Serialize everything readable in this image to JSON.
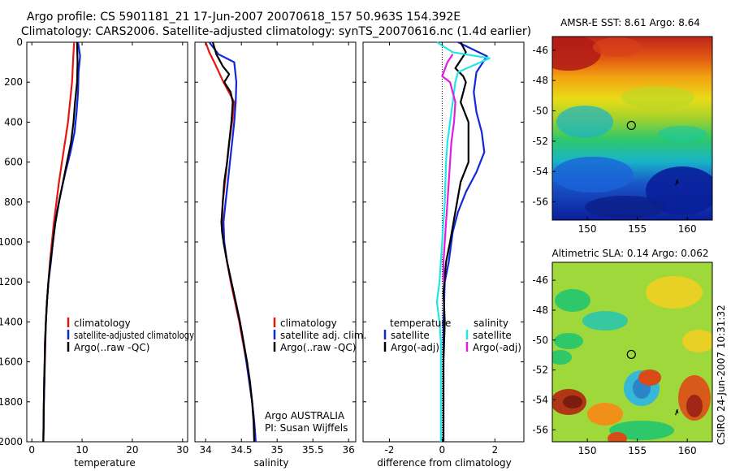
{
  "header": {
    "line1": "Argo profile: CS 5901181_21 17-Jun-2007 20070618_157 50.963S 154.392E",
    "line2": "Climatology: CARS2006. Satellite-adjusted climatology: synTS_20070616.nc (1.4d earlier)"
  },
  "credits": {
    "argo": "Argo AUSTRALIA",
    "pi": "PI: Susan Wijffels",
    "side": "CSIRO 24-Jun-2007 10:31:32"
  },
  "colors": {
    "climatology": "#e8150d",
    "satellite": "#1028d8",
    "argo": "#000000",
    "sat_diff": "#22e6e6",
    "argo_sal_diff": "#e21ce2"
  },
  "chart_data": [
    {
      "type": "line",
      "id": "temperature",
      "xlabel": "temperature",
      "ylabel": "",
      "xlim": [
        -1,
        31
      ],
      "ylim": [
        2000,
        0
      ],
      "xticks": [
        0,
        10,
        20,
        30
      ],
      "yticks": [
        0,
        200,
        400,
        600,
        800,
        1000,
        1200,
        1400,
        1600,
        1800,
        2000
      ],
      "legend": [
        "climatology",
        "satellite-adjusted climatology",
        "Argo(..raw -QC)"
      ],
      "legend_position": "lower-right",
      "series": [
        {
          "name": "climatology",
          "color": "#e8150d",
          "points": [
            [
              8.4,
              0
            ],
            [
              8.2,
              100
            ],
            [
              8.0,
              200
            ],
            [
              7.6,
              300
            ],
            [
              7.2,
              400
            ],
            [
              6.6,
              500
            ],
            [
              6.0,
              600
            ],
            [
              5.4,
              700
            ],
            [
              4.9,
              800
            ],
            [
              4.4,
              900
            ],
            [
              4.0,
              1000
            ],
            [
              3.6,
              1100
            ],
            [
              3.3,
              1200
            ],
            [
              3.0,
              1300
            ],
            [
              2.8,
              1400
            ],
            [
              2.7,
              1500
            ],
            [
              2.6,
              1600
            ],
            [
              2.5,
              1700
            ],
            [
              2.4,
              1800
            ],
            [
              2.35,
              1900
            ],
            [
              2.3,
              2000
            ]
          ]
        },
        {
          "name": "satellite-adjusted climatology",
          "color": "#1028d8",
          "points": [
            [
              9.2,
              0
            ],
            [
              9.6,
              70
            ],
            [
              9.3,
              150
            ],
            [
              9.2,
              250
            ],
            [
              8.9,
              350
            ],
            [
              8.5,
              450
            ],
            [
              7.7,
              550
            ],
            [
              6.7,
              650
            ],
            [
              5.8,
              750
            ],
            [
              5.0,
              850
            ],
            [
              4.4,
              950
            ],
            [
              3.8,
              1100
            ],
            [
              3.3,
              1200
            ],
            [
              3.0,
              1300
            ],
            [
              2.8,
              1400
            ],
            [
              2.6,
              1500
            ],
            [
              2.55,
              1600
            ],
            [
              2.5,
              1700
            ],
            [
              2.4,
              1800
            ],
            [
              2.35,
              1900
            ],
            [
              2.3,
              2000
            ]
          ]
        },
        {
          "name": "Argo(..raw -QC)",
          "color": "#000000",
          "points": [
            [
              9.0,
              0
            ],
            [
              9.1,
              100
            ],
            [
              9.0,
              200
            ],
            [
              8.6,
              300
            ],
            [
              8.3,
              400
            ],
            [
              7.8,
              500
            ],
            [
              7.0,
              600
            ],
            [
              6.2,
              700
            ],
            [
              5.4,
              800
            ],
            [
              4.7,
              900
            ],
            [
              4.2,
              1000
            ],
            [
              3.7,
              1100
            ],
            [
              3.3,
              1200
            ],
            [
              3.0,
              1300
            ],
            [
              2.8,
              1400
            ],
            [
              2.65,
              1500
            ],
            [
              2.55,
              1600
            ],
            [
              2.45,
              1700
            ],
            [
              2.4,
              1800
            ],
            [
              2.35,
              1900
            ],
            [
              2.3,
              2000
            ]
          ]
        }
      ]
    },
    {
      "type": "line",
      "id": "salinity",
      "xlabel": "salinity",
      "ylabel": "",
      "xlim": [
        33.85,
        36.1
      ],
      "ylim": [
        2000,
        0
      ],
      "xticks": [
        34,
        34.5,
        35,
        35.5,
        36
      ],
      "yticks": [
        0,
        200,
        400,
        600,
        800,
        1000,
        1200,
        1400,
        1600,
        1800,
        2000
      ],
      "legend": [
        "climatology",
        "satellite adj. clim.",
        "Argo(..raw -QC)"
      ],
      "legend_position": "lower-right",
      "series": [
        {
          "name": "climatology",
          "color": "#e8150d",
          "points": [
            [
              34.0,
              0
            ],
            [
              34.05,
              50
            ],
            [
              34.12,
              100
            ],
            [
              34.25,
              200
            ],
            [
              34.4,
              300
            ],
            [
              34.37,
              400
            ],
            [
              34.33,
              500
            ],
            [
              34.3,
              600
            ],
            [
              34.27,
              700
            ],
            [
              34.24,
              800
            ],
            [
              34.23,
              900
            ],
            [
              34.25,
              1000
            ],
            [
              34.3,
              1100
            ],
            [
              34.35,
              1200
            ],
            [
              34.41,
              1300
            ],
            [
              34.47,
              1400
            ],
            [
              34.52,
              1500
            ],
            [
              34.57,
              1600
            ],
            [
              34.61,
              1700
            ],
            [
              34.65,
              1800
            ],
            [
              34.68,
              1900
            ],
            [
              34.7,
              2000
            ]
          ]
        },
        {
          "name": "satellite adj. clim.",
          "color": "#1028d8",
          "points": [
            [
              34.05,
              0
            ],
            [
              34.18,
              60
            ],
            [
              34.4,
              100
            ],
            [
              34.43,
              200
            ],
            [
              34.42,
              300
            ],
            [
              34.4,
              400
            ],
            [
              34.37,
              500
            ],
            [
              34.34,
              600
            ],
            [
              34.31,
              700
            ],
            [
              34.28,
              800
            ],
            [
              34.25,
              900
            ],
            [
              34.26,
              1000
            ],
            [
              34.3,
              1100
            ],
            [
              34.36,
              1200
            ],
            [
              34.42,
              1300
            ],
            [
              34.48,
              1400
            ],
            [
              34.53,
              1500
            ],
            [
              34.57,
              1600
            ],
            [
              34.61,
              1700
            ],
            [
              34.65,
              1800
            ],
            [
              34.68,
              1900
            ],
            [
              34.7,
              2000
            ]
          ]
        },
        {
          "name": "Argo(..raw -QC)",
          "color": "#000000",
          "points": [
            [
              34.1,
              0
            ],
            [
              34.15,
              60
            ],
            [
              34.24,
              120
            ],
            [
              34.33,
              160
            ],
            [
              34.26,
              200
            ],
            [
              34.35,
              250
            ],
            [
              34.38,
              300
            ],
            [
              34.36,
              400
            ],
            [
              34.33,
              500
            ],
            [
              34.3,
              600
            ],
            [
              34.26,
              700
            ],
            [
              34.24,
              800
            ],
            [
              34.22,
              900
            ],
            [
              34.23,
              950
            ],
            [
              34.25,
              1000
            ],
            [
              34.3,
              1100
            ],
            [
              34.36,
              1200
            ],
            [
              34.42,
              1300
            ],
            [
              34.48,
              1400
            ],
            [
              34.53,
              1500
            ],
            [
              34.58,
              1600
            ],
            [
              34.62,
              1700
            ],
            [
              34.65,
              1800
            ],
            [
              34.67,
              1900
            ],
            [
              34.68,
              2000
            ]
          ]
        }
      ]
    },
    {
      "type": "line",
      "id": "difference",
      "xlabel": "difference from climatology",
      "ylabel": "",
      "xlim": [
        -3,
        3.1
      ],
      "ylim": [
        2000,
        0
      ],
      "xticks": [
        -2,
        0,
        2
      ],
      "yticks": [
        0,
        200,
        400,
        600,
        800,
        1000,
        1200,
        1400,
        1600,
        1800,
        2000
      ],
      "legend_headers": [
        "temperature",
        "salinity"
      ],
      "legend": [
        "satellite",
        "Argo(-adj)",
        "satellite",
        "Argo(-adj)"
      ],
      "legend_position": "lower-right",
      "series": [
        {
          "name": "satellite",
          "group": "temperature",
          "color": "#1028d8",
          "points": [
            [
              0.6,
              0
            ],
            [
              1.7,
              70
            ],
            [
              1.3,
              150
            ],
            [
              1.2,
              250
            ],
            [
              1.3,
              350
            ],
            [
              1.5,
              450
            ],
            [
              1.6,
              550
            ],
            [
              1.3,
              650
            ],
            [
              0.9,
              750
            ],
            [
              0.6,
              850
            ],
            [
              0.4,
              950
            ],
            [
              0.25,
              1100
            ],
            [
              0.1,
              1200
            ],
            [
              0.05,
              1400
            ],
            [
              0.05,
              1600
            ],
            [
              0.05,
              1800
            ],
            [
              0.05,
              2000
            ]
          ]
        },
        {
          "name": "Argo(-adj)",
          "group": "temperature",
          "color": "#000000",
          "points": [
            [
              0.7,
              0
            ],
            [
              0.9,
              50
            ],
            [
              0.5,
              130
            ],
            [
              0.8,
              170
            ],
            [
              0.9,
              200
            ],
            [
              0.7,
              300
            ],
            [
              1.0,
              400
            ],
            [
              1.0,
              500
            ],
            [
              1.0,
              600
            ],
            [
              0.7,
              700
            ],
            [
              0.5,
              850
            ],
            [
              0.3,
              1000
            ],
            [
              0.15,
              1100
            ],
            [
              0.05,
              1250
            ],
            [
              0.1,
              1400
            ],
            [
              0.05,
              1600
            ],
            [
              0.05,
              1800
            ],
            [
              0.05,
              2000
            ]
          ]
        },
        {
          "name": "satellite",
          "group": "salinity",
          "color": "#22e6e6",
          "points": [
            [
              -0.2,
              0
            ],
            [
              0.4,
              50
            ],
            [
              1.8,
              80
            ],
            [
              0.6,
              150
            ],
            [
              0.5,
              200
            ],
            [
              0.4,
              300
            ],
            [
              0.3,
              400
            ],
            [
              0.2,
              500
            ],
            [
              0.15,
              600
            ],
            [
              0.1,
              800
            ],
            [
              0.0,
              1000
            ],
            [
              -0.1,
              1200
            ],
            [
              -0.2,
              1300
            ],
            [
              -0.1,
              1400
            ],
            [
              -0.05,
              1500
            ],
            [
              -0.05,
              1600
            ],
            [
              -0.05,
              1800
            ],
            [
              -0.05,
              2000
            ]
          ]
        },
        {
          "name": "Argo(-adj)",
          "group": "salinity",
          "color": "#e21ce2",
          "points": [
            [
              0.4,
              60
            ],
            [
              0.2,
              100
            ],
            [
              0.0,
              170
            ],
            [
              0.3,
              200
            ],
            [
              0.4,
              250
            ],
            [
              0.5,
              300
            ],
            [
              0.45,
              400
            ],
            [
              0.35,
              500
            ],
            [
              0.3,
              600
            ],
            [
              0.25,
              700
            ],
            [
              0.2,
              800
            ],
            [
              0.15,
              900
            ],
            [
              0.1,
              1000
            ],
            [
              0.05,
              1100
            ],
            [
              0.05,
              1200
            ]
          ]
        }
      ]
    },
    {
      "type": "heatmap",
      "id": "sst",
      "title": "AMSR-E SST: 8.61  Argo: 8.64",
      "xlim": [
        146.5,
        162.5
      ],
      "ylim": [
        -57.2,
        -45.1
      ],
      "xticks": [
        150,
        155,
        160
      ],
      "yticks": [
        -46,
        -48,
        -50,
        -52,
        -54,
        -56
      ],
      "marker": {
        "lon": 154.4,
        "lat": -50.96
      }
    },
    {
      "type": "heatmap",
      "id": "sla",
      "title": "Altimetric SLA: 0.14  Argo: 0.062",
      "xlim": [
        146.5,
        162.5
      ],
      "ylim": [
        -56.8,
        -44.8
      ],
      "xticks": [
        150,
        155,
        160
      ],
      "yticks": [
        -46,
        -48,
        -50,
        -52,
        -54,
        -56
      ],
      "marker": {
        "lon": 154.4,
        "lat": -50.96
      }
    }
  ]
}
